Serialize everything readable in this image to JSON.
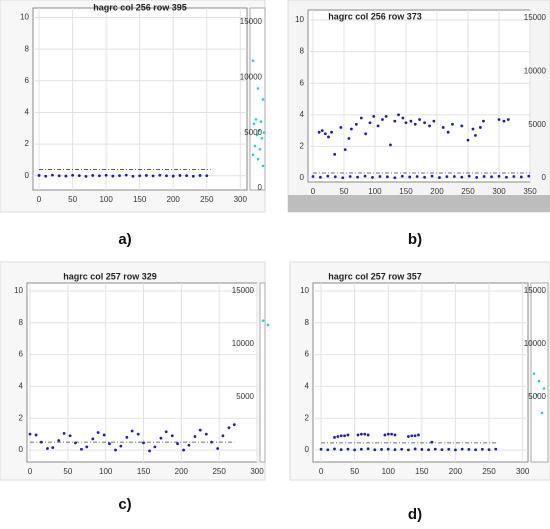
{
  "chart_data": [
    {
      "type": "scatter",
      "label": "a)",
      "title": "hagrc col 256 row 395",
      "xlim": [
        -9,
        310
      ],
      "ylim": [
        -0.9,
        10.6
      ],
      "xticks": [
        0,
        50,
        100,
        150,
        200,
        250,
        300
      ],
      "yticks": [
        0,
        2,
        4,
        6,
        8,
        10
      ],
      "y2lim": [
        0,
        15000
      ],
      "y2ticks": [
        0,
        5000,
        10000,
        15000
      ],
      "grid": true,
      "threshold": {
        "value": 0.4,
        "x": [
          0,
          256
        ]
      },
      "series": [
        {
          "color": "#1c1cc0",
          "x": [
            0,
            10,
            20,
            30,
            40,
            50,
            60,
            70,
            80,
            90,
            100,
            110,
            120,
            130,
            140,
            150,
            160,
            170,
            180,
            190,
            200,
            210,
            220,
            230,
            240,
            250
          ],
          "values": [
            0.02,
            -0.03,
            0.04,
            0,
            -0.02,
            0.03,
            0.01,
            -0.04,
            0.02,
            0,
            0.03,
            -0.02,
            0.01,
            0.04,
            -0.03,
            0,
            0.02,
            -0.01,
            0.03,
            0,
            -0.02,
            0.02,
            0.01,
            -0.03,
            0.02,
            0
          ]
        }
      ],
      "y2_series": {
        "color": "#19d6d6",
        "values": [
          11500,
          9000,
          8000,
          6200,
          6000,
          5800,
          5200,
          5000,
          4800,
          4500,
          3800,
          3500,
          3000,
          2600,
          2000
        ]
      }
    },
    {
      "type": "scatter",
      "label": "b)",
      "title": "hagrc col 256 row 373",
      "xlim": [
        -8,
        350
      ],
      "ylim": [
        -0.25,
        10.63
      ],
      "xticks": [
        0,
        50,
        100,
        150,
        200,
        250,
        300,
        350
      ],
      "yticks": [
        0,
        2,
        4,
        6,
        8,
        10
      ],
      "y2lim": [
        0,
        15000
      ],
      "y2ticks": [
        0,
        5000,
        10000,
        15000
      ],
      "grid": true,
      "threshold": {
        "value": 0.32,
        "x": [
          0,
          350
        ]
      },
      "series": [
        {
          "color": "#1c1cc0",
          "x": [
            0,
            12,
            24,
            36,
            48,
            60,
            72,
            84,
            96,
            108,
            120,
            132,
            144,
            156,
            168,
            180,
            192,
            204,
            216,
            228,
            240,
            252,
            264,
            276,
            288,
            300,
            312,
            324,
            336,
            348
          ],
          "values": [
            0.1,
            0.05,
            0.12,
            0.08,
            0.02,
            0.1,
            0.06,
            0.12,
            0.04,
            0.1,
            0.08,
            0.02,
            0.11,
            0.07,
            0.1,
            0.05,
            0.12,
            0.03,
            0.09,
            0.1,
            0.06,
            0.12,
            0.04,
            0.1,
            0.08,
            0.11,
            0.05,
            0.1,
            0.07,
            0.12
          ]
        },
        {
          "color": "#1c1cc0",
          "x": [
            10,
            15,
            20,
            25,
            30,
            35,
            45,
            52,
            58,
            62,
            70,
            78,
            85,
            92,
            98,
            105,
            112,
            118,
            125,
            132,
            138,
            145,
            150,
            158,
            165,
            172,
            180,
            188,
            195,
            210,
            218,
            225,
            240,
            250,
            258,
            262,
            270,
            275,
            300,
            308,
            315
          ],
          "values": [
            2.9,
            3.0,
            2.8,
            2.6,
            2.9,
            1.5,
            3.2,
            1.8,
            2.5,
            3.1,
            3.4,
            3.8,
            2.8,
            3.5,
            3.9,
            3.3,
            3.7,
            3.9,
            2.1,
            3.6,
            4.0,
            3.8,
            3.5,
            3.6,
            3.4,
            3.7,
            3.5,
            3.3,
            3.6,
            3.2,
            2.9,
            3.4,
            3.3,
            2.4,
            3.1,
            2.7,
            3.2,
            3.6,
            3.7,
            3.6,
            3.7
          ]
        }
      ],
      "y2_series": {
        "color": "#19d6d6",
        "values": []
      }
    },
    {
      "type": "scatter",
      "label": "c)",
      "title": "hagrc col 257 row 329",
      "xlim": [
        -4,
        300
      ],
      "ylim": [
        -0.75,
        10.5
      ],
      "xticks": [
        0,
        50,
        100,
        150,
        200,
        250,
        300
      ],
      "yticks": [
        0,
        2,
        4,
        6,
        8,
        10
      ],
      "y2lim": [
        0,
        15000
      ],
      "y2ticks": [
        5000,
        10000,
        15000
      ],
      "grid": true,
      "threshold": {
        "value": 0.5,
        "x": [
          0,
          270
        ]
      },
      "series": [
        {
          "color": "#1c1cc0",
          "x": [
            0,
            8,
            15,
            23,
            30,
            38,
            45,
            53,
            60,
            68,
            75,
            83,
            90,
            98,
            105,
            113,
            120,
            128,
            135,
            143,
            150,
            158,
            165,
            173,
            180,
            188,
            195,
            203,
            210,
            218,
            225,
            233,
            240,
            248,
            255,
            263,
            270
          ],
          "values": [
            1.0,
            0.95,
            0.5,
            0.1,
            0.15,
            0.6,
            1.05,
            0.9,
            0.45,
            0.05,
            0.2,
            0.7,
            1.1,
            0.95,
            0.4,
            0.0,
            0.25,
            0.8,
            1.2,
            1.0,
            0.45,
            -0.05,
            0.2,
            0.75,
            1.15,
            0.9,
            0.4,
            0.0,
            0.3,
            0.85,
            1.25,
            1.0,
            0.5,
            0.1,
            0.9,
            1.4,
            1.6
          ]
        }
      ],
      "y2_series": {
        "color": "#19d6d6",
        "values": [
          12200,
          11800
        ]
      }
    },
    {
      "type": "scatter",
      "label": "d)",
      "title": "hagrc col 257 row 357",
      "xlim": [
        -12,
        308
      ],
      "ylim": [
        -0.75,
        10.5
      ],
      "xticks": [
        0,
        50,
        100,
        150,
        200,
        250,
        300
      ],
      "yticks": [
        0,
        2,
        4,
        6,
        8,
        10
      ],
      "y2lim": [
        0,
        15000
      ],
      "y2ticks": [
        5000,
        10000,
        15000
      ],
      "grid": true,
      "threshold": {
        "value": 0.45,
        "x": [
          0,
          262
        ]
      },
      "series": [
        {
          "color": "#1c1cc0",
          "x": [
            0,
            10,
            20,
            30,
            40,
            50,
            60,
            70,
            80,
            90,
            100,
            110,
            120,
            130,
            140,
            150,
            160,
            170,
            180,
            190,
            200,
            210,
            220,
            230,
            240,
            250,
            260
          ],
          "values": [
            0.05,
            0.02,
            0.07,
            0.03,
            0.06,
            0.01,
            0.05,
            0.08,
            0.02,
            0.04,
            0.06,
            0.03,
            0.05,
            0.01,
            0.07,
            0.04,
            0.02,
            0.06,
            0.03,
            0.05,
            0.01,
            0.06,
            0.04,
            0.02,
            0.05,
            0.03,
            0.06
          ]
        },
        {
          "color": "#1c1cc0",
          "x": [
            20,
            25,
            30,
            35,
            40,
            55,
            60,
            65,
            70,
            95,
            100,
            105,
            110,
            130,
            135,
            140,
            145,
            165
          ],
          "values": [
            0.8,
            0.85,
            0.9,
            0.9,
            0.95,
            0.95,
            1.0,
            1.0,
            0.95,
            0.95,
            1.0,
            1.0,
            0.95,
            0.85,
            0.9,
            0.9,
            0.95,
            0.5
          ]
        }
      ],
      "y2_series": {
        "color": "#19d6d6",
        "values": [
          7200,
          6500,
          5800,
          5200,
          3500
        ]
      }
    }
  ]
}
